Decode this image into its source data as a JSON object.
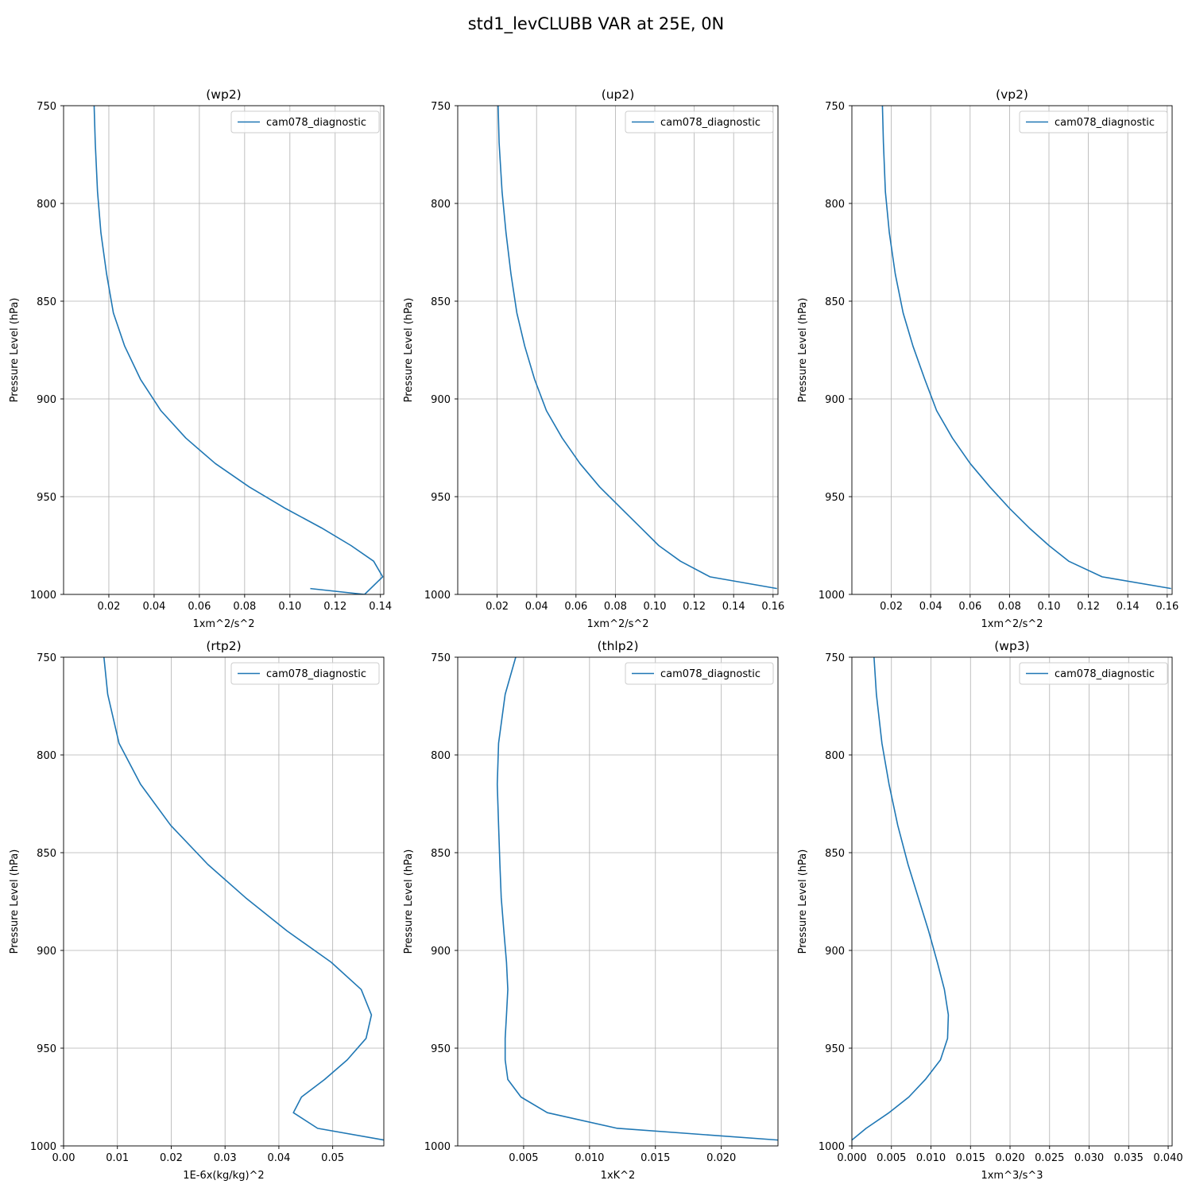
{
  "figure": {
    "title": "std1_levCLUBB VAR at 25E, 0N"
  },
  "chart_data": [
    {
      "type": "line",
      "title": "(wp2)",
      "xlabel": "1xm^2/s^2",
      "ylabel": "Pressure Level (hPa)",
      "xlim": [
        0.0,
        0.1415
      ],
      "ylim": [
        1000,
        750
      ],
      "xticks": [
        0.02,
        0.04,
        0.06,
        0.08,
        0.1,
        0.12,
        0.14
      ],
      "xtick_labels": [
        "0.02",
        "0.04",
        "0.06",
        "0.08",
        "0.10",
        "0.12",
        "0.14"
      ],
      "yticks": [
        750,
        800,
        850,
        900,
        950,
        1000
      ],
      "ytick_labels": [
        "750",
        "800",
        "850",
        "900",
        "950",
        "1000"
      ],
      "grid": true,
      "legend_loc": "upper-right",
      "series": [
        {
          "name": "cam078_diagnostic",
          "color": "#1f77b4",
          "x": [
            0.0135,
            0.014,
            0.015,
            0.0165,
            0.019,
            0.022,
            0.027,
            0.034,
            0.043,
            0.054,
            0.067,
            0.082,
            0.098,
            0.114,
            0.127,
            0.137,
            0.141,
            0.133,
            0.109
          ],
          "y": [
            750,
            769,
            794,
            815,
            836,
            856,
            873,
            890,
            906,
            920,
            933,
            945,
            956,
            966,
            975,
            983,
            991,
            1000,
            997
          ]
        }
      ]
    },
    {
      "type": "line",
      "title": "(up2)",
      "xlabel": "1xm^2/s^2",
      "ylabel": "Pressure Level (hPa)",
      "xlim": [
        0.0,
        0.1625
      ],
      "ylim": [
        1000,
        750
      ],
      "xticks": [
        0.02,
        0.04,
        0.06,
        0.08,
        0.1,
        0.12,
        0.14,
        0.16
      ],
      "xtick_labels": [
        "0.02",
        "0.04",
        "0.06",
        "0.08",
        "0.10",
        "0.12",
        "0.14",
        "0.16"
      ],
      "yticks": [
        750,
        800,
        850,
        900,
        950,
        1000
      ],
      "ytick_labels": [
        "750",
        "800",
        "850",
        "900",
        "950",
        "1000"
      ],
      "grid": true,
      "legend_loc": "upper-right",
      "series": [
        {
          "name": "cam078_diagnostic",
          "color": "#1f77b4",
          "x": [
            0.0205,
            0.021,
            0.0225,
            0.0245,
            0.027,
            0.03,
            0.034,
            0.039,
            0.045,
            0.053,
            0.062,
            0.072,
            0.083,
            0.093,
            0.102,
            0.113,
            0.128,
            0.162
          ],
          "y": [
            750,
            769,
            794,
            815,
            836,
            856,
            873,
            890,
            906,
            920,
            933,
            945,
            956,
            966,
            975,
            983,
            991,
            997
          ]
        }
      ]
    },
    {
      "type": "line",
      "title": "(vp2)",
      "xlabel": "1xm^2/s^2",
      "ylabel": "Pressure Level (hPa)",
      "xlim": [
        0.0,
        0.1625
      ],
      "ylim": [
        1000,
        750
      ],
      "xticks": [
        0.02,
        0.04,
        0.06,
        0.08,
        0.1,
        0.12,
        0.14,
        0.16
      ],
      "xtick_labels": [
        "0.02",
        "0.04",
        "0.06",
        "0.08",
        "0.10",
        "0.12",
        "0.14",
        "0.16"
      ],
      "yticks": [
        750,
        800,
        850,
        900,
        950,
        1000
      ],
      "ytick_labels": [
        "750",
        "800",
        "850",
        "900",
        "950",
        "1000"
      ],
      "grid": true,
      "legend_loc": "upper-right",
      "series": [
        {
          "name": "cam078_diagnostic",
          "color": "#1f77b4",
          "x": [
            0.0155,
            0.016,
            0.017,
            0.019,
            0.022,
            0.026,
            0.031,
            0.037,
            0.043,
            0.051,
            0.06,
            0.07,
            0.08,
            0.09,
            0.1,
            0.11,
            0.127,
            0.162
          ],
          "y": [
            750,
            769,
            794,
            815,
            836,
            856,
            873,
            890,
            906,
            920,
            933,
            945,
            956,
            966,
            975,
            983,
            991,
            997
          ]
        }
      ]
    },
    {
      "type": "line",
      "title": "(rtp2)",
      "xlabel": "1E-6x(kg/kg)^2",
      "ylabel": "Pressure Level (hPa)",
      "xlim": [
        0.0,
        0.0595
      ],
      "ylim": [
        1000,
        750
      ],
      "xticks": [
        0.0,
        0.01,
        0.02,
        0.03,
        0.04,
        0.05
      ],
      "xtick_labels": [
        "0.00",
        "0.01",
        "0.02",
        "0.03",
        "0.04",
        "0.05"
      ],
      "yticks": [
        750,
        800,
        850,
        900,
        950,
        1000
      ],
      "ytick_labels": [
        "750",
        "800",
        "850",
        "900",
        "950",
        "1000"
      ],
      "grid": true,
      "legend_loc": "upper-right",
      "series": [
        {
          "name": "cam078_diagnostic",
          "color": "#1f77b4",
          "x": [
            0.0075,
            0.0082,
            0.0103,
            0.0143,
            0.0199,
            0.0268,
            0.0338,
            0.0415,
            0.0497,
            0.0553,
            0.0572,
            0.0562,
            0.0527,
            0.0485,
            0.0442,
            0.0427,
            0.0472,
            0.0595
          ],
          "y": [
            750,
            769,
            794,
            815,
            836,
            856,
            873,
            890,
            906,
            920,
            933,
            945,
            956,
            966,
            975,
            983,
            991,
            997
          ]
        }
      ]
    },
    {
      "type": "line",
      "title": "(thlp2)",
      "xlabel": "1xK^2",
      "ylabel": "Pressure Level (hPa)",
      "xlim": [
        0.0,
        0.0243
      ],
      "ylim": [
        1000,
        750
      ],
      "xticks": [
        0.005,
        0.01,
        0.015,
        0.02
      ],
      "xtick_labels": [
        "0.005",
        "0.010",
        "0.015",
        "0.020"
      ],
      "yticks": [
        750,
        800,
        850,
        900,
        950,
        1000
      ],
      "ytick_labels": [
        "750",
        "800",
        "850",
        "900",
        "950",
        "1000"
      ],
      "grid": true,
      "legend_loc": "upper-right",
      "series": [
        {
          "name": "cam078_diagnostic",
          "color": "#1f77b4",
          "x": [
            0.0044,
            0.0036,
            0.0031,
            0.003,
            0.0031,
            0.0032,
            0.0033,
            0.0035,
            0.0037,
            0.0038,
            0.0037,
            0.0036,
            0.0036,
            0.0038,
            0.0048,
            0.0068,
            0.0121,
            0.0243
          ],
          "y": [
            750,
            769,
            794,
            815,
            836,
            856,
            873,
            890,
            906,
            920,
            933,
            945,
            956,
            966,
            975,
            983,
            991,
            997
          ]
        }
      ]
    },
    {
      "type": "line",
      "title": "(wp3)",
      "xlabel": "1xm^3/s^3",
      "ylabel": "Pressure Level (hPa)",
      "xlim": [
        0.0,
        0.0405
      ],
      "ylim": [
        1000,
        750
      ],
      "xticks": [
        0.0,
        0.005,
        0.01,
        0.015,
        0.02,
        0.025,
        0.03,
        0.035,
        0.04
      ],
      "xtick_labels": [
        "0.000",
        "0.005",
        "0.010",
        "0.015",
        "0.020",
        "0.025",
        "0.030",
        "0.035",
        "0.040"
      ],
      "yticks": [
        750,
        800,
        850,
        900,
        950,
        1000
      ],
      "ytick_labels": [
        "750",
        "800",
        "850",
        "900",
        "950",
        "1000"
      ],
      "grid": true,
      "legend_loc": "upper-right",
      "series": [
        {
          "name": "cam078_diagnostic",
          "color": "#1f77b4",
          "x": [
            0.0028,
            0.0031,
            0.0038,
            0.0047,
            0.0058,
            0.0071,
            0.0084,
            0.0097,
            0.0108,
            0.0117,
            0.0122,
            0.0121,
            0.0112,
            0.0093,
            0.0072,
            0.0047,
            0.0018,
            0.0
          ],
          "y": [
            750,
            769,
            794,
            815,
            836,
            856,
            873,
            890,
            906,
            920,
            933,
            945,
            956,
            966,
            975,
            983,
            991,
            997
          ]
        }
      ]
    }
  ]
}
